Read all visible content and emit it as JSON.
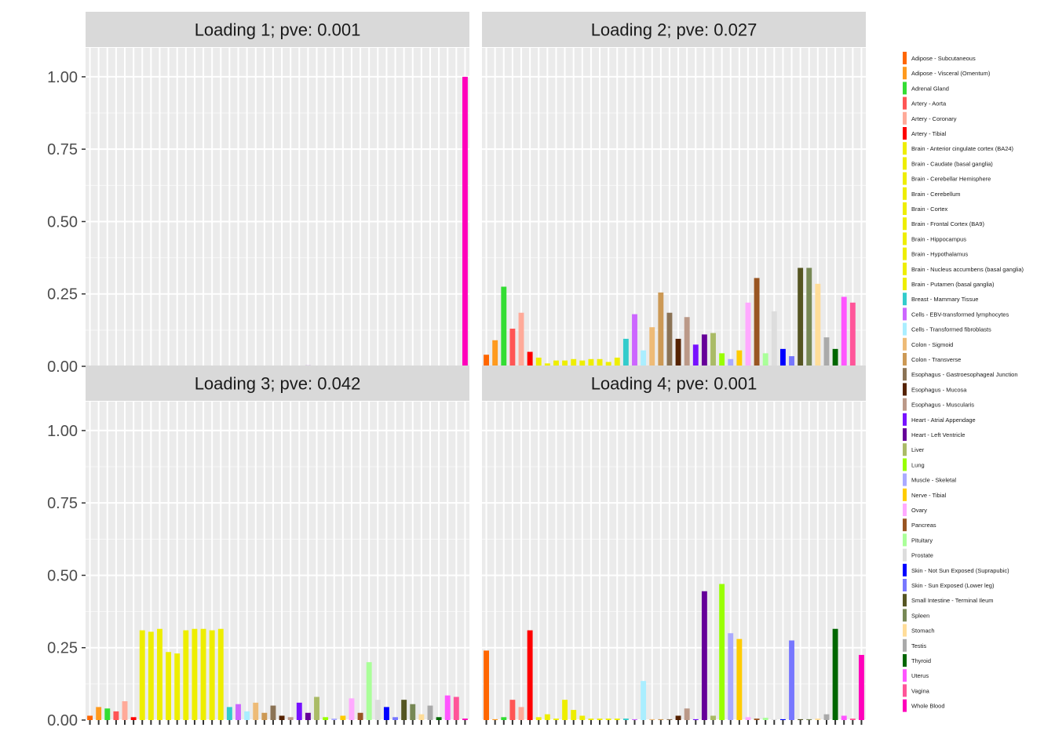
{
  "chart_data": {
    "type": "bar",
    "y_tick_labels": [
      "0.00",
      "0.25",
      "0.50",
      "0.75",
      "1.00"
    ],
    "y_ticks": [
      0,
      0.25,
      0.5,
      0.75,
      1.0
    ],
    "ylim": [
      0,
      1.1
    ],
    "grid": true,
    "legend_position": "right",
    "categories": [
      "Adipose - Subcutaneous",
      "Adipose - Visceral (Omentum)",
      "Adrenal Gland",
      "Artery - Aorta",
      "Artery - Coronary",
      "Artery - Tibial",
      "Brain - Anterior cingulate cortex (BA24)",
      "Brain - Caudate (basal ganglia)",
      "Brain - Cerebellar Hemisphere",
      "Brain - Cerebellum",
      "Brain - Cortex",
      "Brain - Frontal Cortex (BA9)",
      "Brain - Hippocampus",
      "Brain - Hypothalamus",
      "Brain - Nucleus accumbens (basal ganglia)",
      "Brain - Putamen (basal ganglia)",
      "Breast - Mammary Tissue",
      "Cells - EBV-transformed lymphocytes",
      "Cells - Transformed fibroblasts",
      "Colon - Sigmoid",
      "Colon - Transverse",
      "Esophagus - Gastroesophageal Junction",
      "Esophagus - Mucosa",
      "Esophagus - Muscularis",
      "Heart - Atrial Appendage",
      "Heart - Left Ventricle",
      "Liver",
      "Lung",
      "Muscle - Skeletal",
      "Nerve - Tibial",
      "Ovary",
      "Pancreas",
      "Pituitary",
      "Prostate",
      "Skin - Not Sun Exposed (Suprapubic)",
      "Skin - Sun Exposed (Lower leg)",
      "Small Intestine - Terminal Ileum",
      "Spleen",
      "Stomach",
      "Testis",
      "Thyroid",
      "Uterus",
      "Vagina",
      "Whole Blood"
    ],
    "colors": [
      "#FF6600",
      "#FF9A1E",
      "#33DD33",
      "#FF5555",
      "#FFAA99",
      "#FF0000",
      "#EEEE00",
      "#EEEE00",
      "#EEEE00",
      "#EEEE00",
      "#EEEE00",
      "#EEEE00",
      "#EEEE00",
      "#EEEE00",
      "#EEEE00",
      "#EEEE00",
      "#33CCCC",
      "#CC66FF",
      "#AAEEFF",
      "#EEBB77",
      "#CC9955",
      "#8B7355",
      "#552200",
      "#BB9988",
      "#7711FF",
      "#660099",
      "#AABB66",
      "#99FF00",
      "#AAAAFF",
      "#FFCC00",
      "#FFAAFF",
      "#995522",
      "#AAFF99",
      "#DDDDDD",
      "#0000FF",
      "#7777FF",
      "#555522",
      "#778855",
      "#FFDD99",
      "#AAAAAA",
      "#006600",
      "#FF55FF",
      "#FF5599",
      "#FF00BB"
    ],
    "panels": [
      {
        "title": "Loading 1; pve: 0.001",
        "values": [
          0.002,
          0.001,
          0.001,
          0.001,
          0.002,
          0.002,
          0.001,
          0.001,
          0.001,
          0.001,
          0.001,
          0.001,
          0.001,
          0.001,
          0.001,
          0.001,
          0.001,
          0.002,
          0.001,
          0.001,
          0.001,
          0.001,
          0.001,
          0.002,
          0.002,
          0.003,
          0.001,
          0.001,
          0.001,
          0.001,
          0.001,
          0.001,
          0.001,
          0.001,
          0.002,
          0.002,
          0.002,
          0.001,
          0.001,
          0.001,
          0.001,
          0.002,
          0.001,
          1.0
        ]
      },
      {
        "title": "Loading 2; pve: 0.027",
        "values": [
          0.04,
          0.09,
          0.275,
          0.13,
          0.185,
          0.05,
          0.03,
          0.01,
          0.02,
          0.02,
          0.025,
          0.02,
          0.025,
          0.025,
          0.015,
          0.03,
          0.095,
          0.18,
          0.055,
          0.135,
          0.255,
          0.185,
          0.095,
          0.17,
          0.075,
          0.11,
          0.115,
          0.045,
          0.025,
          0.055,
          0.22,
          0.305,
          0.045,
          0.19,
          0.06,
          0.035,
          0.34,
          0.34,
          0.285,
          0.1,
          0.06,
          0.24,
          0.22,
          0.0
        ]
      },
      {
        "title": "Loading 3; pve: 0.042",
        "values": [
          0.015,
          0.045,
          0.04,
          0.03,
          0.065,
          0.01,
          0.31,
          0.305,
          0.315,
          0.235,
          0.23,
          0.31,
          0.315,
          0.315,
          0.31,
          0.315,
          0.045,
          0.055,
          0.03,
          0.06,
          0.025,
          0.05,
          0.015,
          0.01,
          0.06,
          0.025,
          0.08,
          0.01,
          0.005,
          0.015,
          0.075,
          0.025,
          0.2,
          0.07,
          0.045,
          0.01,
          0.07,
          0.055,
          0.02,
          0.05,
          0.01,
          0.085,
          0.08,
          0.005
        ]
      },
      {
        "title": "Loading 4; pve: 0.001",
        "values": [
          0.24,
          0.003,
          0.01,
          0.07,
          0.045,
          0.31,
          0.01,
          0.02,
          0.005,
          0.07,
          0.035,
          0.015,
          0.005,
          0.005,
          0.005,
          0.005,
          0.005,
          0.003,
          0.135,
          0.003,
          0.003,
          0.003,
          0.015,
          0.04,
          0.003,
          0.445,
          0.015,
          0.47,
          0.3,
          0.28,
          0.01,
          0.005,
          0.008,
          0.003,
          0.003,
          0.275,
          0.003,
          0.003,
          0.005,
          0.02,
          0.315,
          0.015,
          0.005,
          0.225
        ]
      }
    ]
  }
}
